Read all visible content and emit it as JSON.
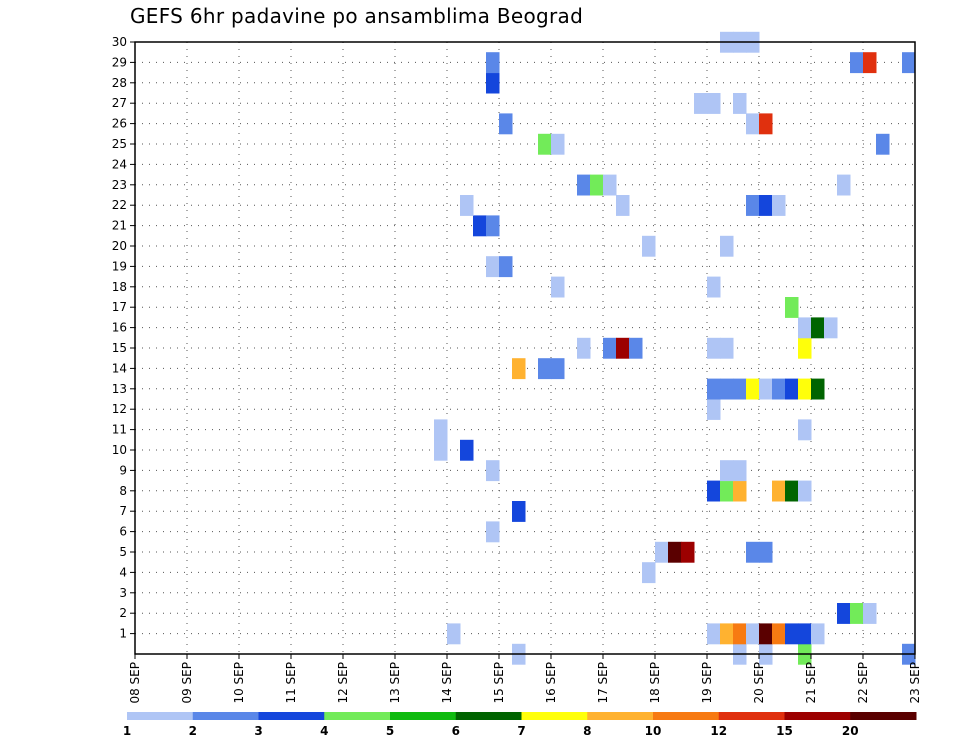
{
  "chart_data": {
    "type": "heatmap",
    "title": "GEFS 6hr padavine po ansamblima Beograd",
    "xlabel": "",
    "ylabel": "",
    "x_tick_labels": [
      "08 SEP",
      "09 SEP",
      "10 SEP",
      "11 SEP",
      "12 SEP",
      "13 SEP",
      "14 SEP",
      "15 SEP",
      "16 SEP",
      "17 SEP",
      "18 SEP",
      "19 SEP",
      "20 SEP",
      "21 SEP",
      "22 SEP",
      "23 SEP"
    ],
    "x_range_days": [
      0,
      15
    ],
    "x_step_days": 0.25,
    "y_tick_labels": [
      "1",
      "2",
      "3",
      "4",
      "5",
      "6",
      "7",
      "8",
      "9",
      "10",
      "11",
      "12",
      "13",
      "14",
      "15",
      "16",
      "17",
      "18",
      "19",
      "20",
      "21",
      "22",
      "23",
      "24",
      "25",
      "26",
      "27",
      "28",
      "29",
      "30"
    ],
    "y_range": [
      0,
      30
    ],
    "grid": true,
    "colorbar": {
      "labels": [
        "1",
        "2",
        "3",
        "4",
        "5",
        "6",
        "7",
        "8",
        "10",
        "12",
        "15",
        "20"
      ],
      "colors": [
        "#afc5f5",
        "#5a87e8",
        "#1446dc",
        "#72eb59",
        "#0fbb0f",
        "#006400",
        "#ffff0a",
        "#ffb230",
        "#f77a12",
        "#e0300e",
        "#9c0000",
        "#5a0000"
      ]
    },
    "cells": [
      [
        11.5,
        0,
        0
      ],
      [
        12,
        0,
        0
      ],
      [
        7.25,
        0,
        0
      ],
      [
        14.75,
        0,
        1
      ],
      [
        12.75,
        0,
        3
      ],
      [
        6,
        1,
        0
      ],
      [
        11,
        1,
        0
      ],
      [
        11.25,
        1,
        7
      ],
      [
        11.5,
        1,
        8
      ],
      [
        11.75,
        1,
        0
      ],
      [
        12,
        1,
        11
      ],
      [
        12.25,
        1,
        8
      ],
      [
        12.5,
        1,
        2
      ],
      [
        12.75,
        1,
        2
      ],
      [
        13,
        1,
        0
      ],
      [
        13.5,
        2,
        2
      ],
      [
        13.75,
        2,
        3
      ],
      [
        14,
        2,
        0
      ],
      [
        9.75,
        4,
        0
      ],
      [
        10,
        5,
        0
      ],
      [
        10.25,
        5,
        11
      ],
      [
        10.5,
        5,
        10
      ],
      [
        11.75,
        5,
        1
      ],
      [
        12,
        5,
        1
      ],
      [
        6.75,
        6,
        0
      ],
      [
        7.25,
        7,
        2
      ],
      [
        11,
        8,
        2
      ],
      [
        11.25,
        8,
        3
      ],
      [
        11.5,
        8,
        7
      ],
      [
        12.25,
        8,
        7
      ],
      [
        12.5,
        8,
        5
      ],
      [
        12.75,
        8,
        0
      ],
      [
        11.25,
        9,
        0
      ],
      [
        11.5,
        9,
        0
      ],
      [
        6.75,
        9,
        0
      ],
      [
        5.75,
        10,
        0
      ],
      [
        6.25,
        10,
        2
      ],
      [
        5.75,
        11,
        0
      ],
      [
        12.75,
        11,
        0
      ],
      [
        11,
        12,
        0
      ],
      [
        11,
        13,
        1
      ],
      [
        11.25,
        13,
        1
      ],
      [
        11.5,
        13,
        1
      ],
      [
        11.75,
        13,
        6
      ],
      [
        12,
        13,
        0
      ],
      [
        12.25,
        13,
        1
      ],
      [
        12.5,
        13,
        2
      ],
      [
        12.75,
        13,
        6
      ],
      [
        13,
        13,
        5
      ],
      [
        7.25,
        14,
        7
      ],
      [
        7.75,
        14,
        1
      ],
      [
        8,
        14,
        1
      ],
      [
        8.5,
        15,
        0
      ],
      [
        9,
        15,
        1
      ],
      [
        9.25,
        15,
        10
      ],
      [
        9.5,
        15,
        1
      ],
      [
        11,
        15,
        0
      ],
      [
        11.25,
        15,
        0
      ],
      [
        12.75,
        15,
        6
      ],
      [
        12.75,
        16,
        0
      ],
      [
        13,
        16,
        5
      ],
      [
        13.25,
        16,
        0
      ],
      [
        12.5,
        17,
        3
      ],
      [
        8,
        18,
        0
      ],
      [
        11,
        18,
        0
      ],
      [
        6.75,
        19,
        0
      ],
      [
        7,
        19,
        1
      ],
      [
        9.75,
        20,
        0
      ],
      [
        11.25,
        20,
        0
      ],
      [
        6.5,
        21,
        2
      ],
      [
        6.75,
        21,
        1
      ],
      [
        6.25,
        22,
        0
      ],
      [
        9.25,
        22,
        0
      ],
      [
        11.75,
        22,
        1
      ],
      [
        12,
        22,
        2
      ],
      [
        12.25,
        22,
        0
      ],
      [
        8.5,
        23,
        1
      ],
      [
        8.75,
        23,
        3
      ],
      [
        9,
        23,
        0
      ],
      [
        13.5,
        23,
        0
      ],
      [
        7.75,
        25,
        3
      ],
      [
        8,
        25,
        0
      ],
      [
        14.25,
        25,
        1
      ],
      [
        7,
        26,
        1
      ],
      [
        11.75,
        26,
        0
      ],
      [
        12,
        26,
        9
      ],
      [
        10.75,
        27,
        0
      ],
      [
        11,
        27,
        0
      ],
      [
        11.5,
        27,
        0
      ],
      [
        6.75,
        28,
        2
      ],
      [
        6.75,
        29,
        1
      ],
      [
        13.75,
        29,
        1
      ],
      [
        14,
        29,
        9
      ],
      [
        14.75,
        29,
        1
      ],
      [
        11.25,
        30,
        0
      ],
      [
        11.5,
        30,
        0
      ],
      [
        11.75,
        30,
        0
      ]
    ]
  }
}
